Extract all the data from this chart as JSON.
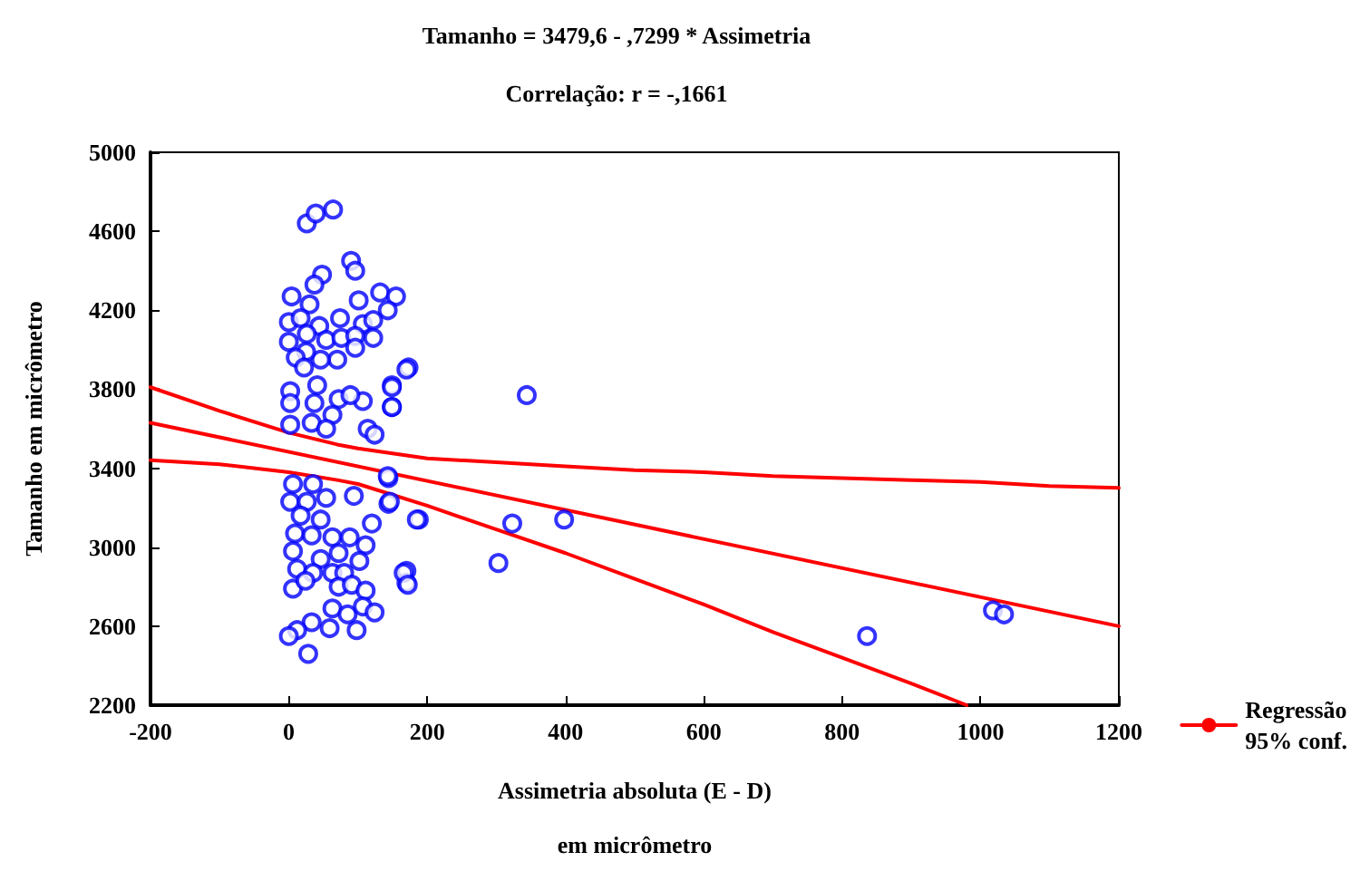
{
  "chart_data": {
    "type": "scatter",
    "title": "Tamanho = 3479,6 - ,7299 * Assimetria",
    "subtitle": "Correlação: r = -,1661",
    "xlabel": "Assimetria absoluta (E - D)\nem micrômetro",
    "ylabel": "Tamanho em micrômetro",
    "xlim": [
      -200,
      1200
    ],
    "xticks": [
      -200,
      0,
      200,
      400,
      600,
      800,
      1000,
      1200
    ],
    "ylim": [
      2200,
      5000
    ],
    "yticks": [
      2200,
      2600,
      3000,
      3400,
      3800,
      4200,
      4600,
      5000
    ],
    "legend": "right",
    "series": [
      {
        "type": "scatter",
        "color": "#0000ff",
        "marker": "circle",
        "x": [
          344,
          303,
          323,
          398,
          836,
          1018,
          1034,
          188,
          170,
          170,
          173,
          149,
          149,
          144,
          144,
          26,
          39,
          64,
          90,
          96,
          48,
          37,
          4,
          132,
          155,
          101,
          143,
          30,
          0,
          17,
          44,
          74,
          107,
          122,
          122,
          0,
          26,
          54,
          76,
          96,
          96,
          70,
          46,
          25,
          10,
          22,
          170,
          149,
          149,
          2,
          41,
          2,
          37,
          72,
          107,
          89,
          63,
          33,
          2,
          114,
          124,
          54,
          6,
          35,
          54,
          94,
          143,
          146,
          185,
          2,
          26,
          17,
          46,
          9,
          33,
          63,
          88,
          120,
          111,
          6,
          46,
          72,
          102,
          12,
          35,
          63,
          80,
          166,
          172,
          6,
          24,
          72,
          91,
          111,
          63,
          85,
          107,
          124,
          98,
          59,
          33,
          12,
          0,
          28
        ],
        "values": [
          3770,
          2920,
          3120,
          3140,
          2550,
          2680,
          2660,
          3140,
          2880,
          2820,
          3910,
          3820,
          3710,
          3350,
          3220,
          4640,
          4690,
          4710,
          4450,
          4400,
          4380,
          4330,
          4270,
          4290,
          4270,
          4250,
          4200,
          4230,
          4140,
          4160,
          4120,
          4160,
          4130,
          4150,
          4060,
          4040,
          4080,
          4050,
          4060,
          4070,
          4010,
          3950,
          3950,
          3990,
          3960,
          3910,
          3900,
          3810,
          3710,
          3790,
          3820,
          3730,
          3730,
          3750,
          3740,
          3770,
          3670,
          3630,
          3620,
          3600,
          3570,
          3600,
          3320,
          3320,
          3250,
          3260,
          3360,
          3230,
          3140,
          3230,
          3230,
          3160,
          3140,
          3070,
          3060,
          3050,
          3050,
          3120,
          3010,
          2980,
          2940,
          2970,
          2930,
          2890,
          2870,
          2870,
          2870,
          2870,
          2810,
          2790,
          2830,
          2800,
          2810,
          2780,
          2690,
          2660,
          2700,
          2670,
          2580,
          2590,
          2620,
          2580,
          2550,
          2460
        ]
      },
      {
        "type": "line",
        "name": "Regressão\n95% conf.",
        "color": "#ff0000",
        "x": [
          -200,
          1200
        ],
        "values": [
          3630,
          2600
        ]
      },
      {
        "type": "line",
        "color": "#ff0000",
        "x": [
          -200,
          -100,
          0,
          70,
          100,
          200,
          300,
          400,
          500,
          600,
          700,
          800,
          900,
          1000,
          1100,
          1200
        ],
        "values": [
          3810,
          3690,
          3580,
          3520,
          3500,
          3450,
          3430,
          3410,
          3390,
          3380,
          3360,
          3350,
          3340,
          3330,
          3310,
          3300
        ]
      },
      {
        "type": "line",
        "color": "#ff0000",
        "x": [
          -200,
          -100,
          0,
          70,
          100,
          200,
          300,
          400,
          500,
          600,
          700,
          800,
          900,
          980
        ],
        "values": [
          3440,
          3420,
          3380,
          3340,
          3320,
          3210,
          3090,
          2970,
          2840,
          2710,
          2570,
          2440,
          2310,
          2200
        ]
      }
    ]
  }
}
